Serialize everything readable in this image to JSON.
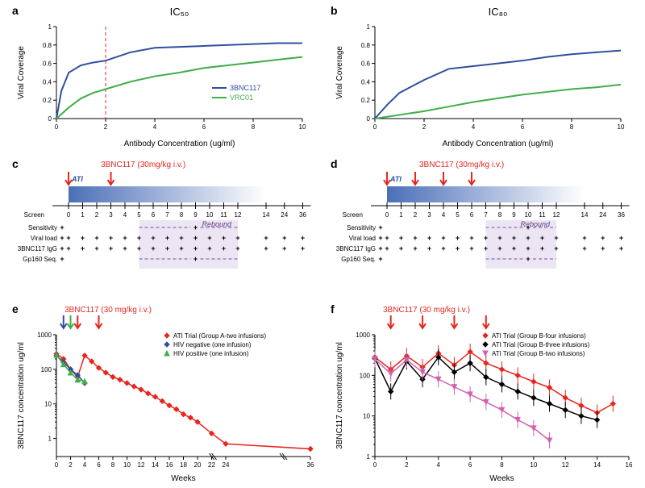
{
  "panel_a": {
    "label": "a",
    "title": "IC₅₀",
    "title_fontsize": 13,
    "type": "line",
    "xlabel": "Antibody Concentration (ug/ml)",
    "ylabel": "Viral Coverage",
    "xlim": [
      0,
      10
    ],
    "ylim": [
      0,
      1.0
    ],
    "xtick_step": 2,
    "ytick_step": 0.2,
    "label_fontsize": 10,
    "tick_fontsize": 8,
    "background": "#ffffff",
    "axis_color": "#000000",
    "vref": {
      "x": 2,
      "color": "#e6261f",
      "dash": "4,3",
      "width": 1
    },
    "series": [
      {
        "name": "3BNC117",
        "color": "#2f4f9f",
        "width": 2,
        "x": [
          0,
          0.2,
          0.5,
          1,
          1.5,
          2,
          3,
          4,
          5,
          6,
          7,
          8,
          9,
          10
        ],
        "y": [
          0,
          0.3,
          0.5,
          0.58,
          0.61,
          0.63,
          0.72,
          0.77,
          0.78,
          0.79,
          0.8,
          0.81,
          0.82,
          0.82
        ]
      },
      {
        "name": "VRC01",
        "color": "#3fae49",
        "width": 2,
        "x": [
          0,
          0.5,
          1,
          1.5,
          2,
          3,
          4,
          5,
          6,
          7,
          8,
          9,
          10
        ],
        "y": [
          0,
          0.12,
          0.22,
          0.28,
          0.32,
          0.4,
          0.46,
          0.5,
          0.55,
          0.58,
          0.61,
          0.64,
          0.67
        ]
      }
    ],
    "legend": {
      "pos": "inside-br",
      "fontsize": 9
    }
  },
  "panel_b": {
    "label": "b",
    "title": "IC₈₀",
    "title_fontsize": 13,
    "type": "line",
    "xlabel": "Antibody Concentration (ug/ml)",
    "ylabel": "Viral Coverage",
    "xlim": [
      0,
      10
    ],
    "ylim": [
      0,
      1.0
    ],
    "xtick_step": 2,
    "ytick_step": 0.2,
    "label_fontsize": 10,
    "tick_fontsize": 8,
    "background": "#ffffff",
    "axis_color": "#000000",
    "series": [
      {
        "name": "3BNC117",
        "color": "#2f4f9f",
        "width": 2,
        "x": [
          0,
          0.5,
          1,
          2,
          3,
          4,
          5,
          6,
          7,
          8,
          9,
          10
        ],
        "y": [
          0,
          0.15,
          0.28,
          0.42,
          0.54,
          0.57,
          0.6,
          0.63,
          0.67,
          0.7,
          0.72,
          0.74
        ]
      },
      {
        "name": "VRC01",
        "color": "#3fae49",
        "width": 2,
        "x": [
          0,
          1,
          2,
          3,
          4,
          5,
          6,
          7,
          8,
          9,
          10
        ],
        "y": [
          0,
          0.04,
          0.08,
          0.13,
          0.18,
          0.22,
          0.26,
          0.29,
          0.32,
          0.34,
          0.37
        ]
      }
    ]
  },
  "panel_c": {
    "label": "c",
    "type": "timeline",
    "heading": "3BNC117 (30mg/kg i.v.)",
    "heading_color": "#e6261f",
    "heading_fontsize": 10,
    "ati_label": "ATI",
    "ati_color": "#2f4f9f",
    "arrows": {
      "color": "#e6261f",
      "positions": [
        0,
        3
      ]
    },
    "axis": {
      "label": "Screen",
      "ticks": [
        0,
        1,
        2,
        3,
        4,
        5,
        6,
        7,
        8,
        9,
        10,
        11,
        12,
        14,
        24,
        36
      ],
      "fontsize": 8
    },
    "gradient": {
      "from": "#4b6fb8",
      "to": "#ffffff",
      "span": [
        0,
        14
      ]
    },
    "rebound_band": {
      "span": [
        5,
        12
      ],
      "color": "#d9cce8",
      "label": "Rebound",
      "label_color": "#5d3b86"
    },
    "rows": [
      {
        "label": "Sensitivity",
        "marks": {
          "-1": "+",
          "9": "+"
        },
        "dash_span": [
          5,
          9,
          9,
          12
        ],
        "dash_color": "#7b4fa0"
      },
      {
        "label": "Viral load",
        "marks_all": "+",
        "extra_marks": {
          "-1": "+"
        }
      },
      {
        "label": "3BNC117 IgG",
        "marks_all": "+",
        "extra_marks": {
          "-1": "+"
        }
      },
      {
        "label": "Gp160 Seq.",
        "marks": {
          "-1": "+",
          "9": "+"
        },
        "dash_span": [
          5,
          9,
          9,
          12
        ],
        "dash_color": "#7b4fa0"
      }
    ]
  },
  "panel_d": {
    "label": "d",
    "type": "timeline",
    "heading": "3BNC117 (30mg/kg i.v.)",
    "heading_color": "#e6261f",
    "heading_fontsize": 10,
    "ati_label": "ATI",
    "ati_color": "#2f4f9f",
    "arrows": {
      "color": "#e6261f",
      "positions": [
        0,
        2,
        4,
        6
      ]
    },
    "axis": {
      "label": "Screen",
      "ticks": [
        0,
        1,
        2,
        3,
        4,
        5,
        6,
        7,
        8,
        9,
        10,
        11,
        12,
        14,
        24,
        36
      ],
      "fontsize": 8
    },
    "gradient": {
      "from": "#4b6fb8",
      "to": "#ffffff",
      "span": [
        0,
        14
      ]
    },
    "rebound_band": {
      "span": [
        7,
        12
      ],
      "color": "#d9cce8",
      "label": "Rebound",
      "label_color": "#5d3b86"
    },
    "rows": [
      {
        "label": "Sensitivity",
        "marks": {
          "-1": "+",
          "10": "+"
        },
        "dash_span": [
          7,
          10,
          10,
          12
        ],
        "dash_color": "#7b4fa0"
      },
      {
        "label": "Viral load",
        "marks_all": "+",
        "extra_marks": {
          "-1": "+"
        }
      },
      {
        "label": "3BNC117 IgG",
        "marks_all": "+",
        "extra_marks": {
          "-1": "+"
        }
      },
      {
        "label": "Gp160 Seq.",
        "marks": {
          "-1": "+",
          "10": "+"
        },
        "dash_span": [
          7,
          10,
          10,
          12
        ],
        "dash_color": "#7b4fa0"
      }
    ]
  },
  "panel_e": {
    "label": "e",
    "type": "line",
    "ylog": true,
    "heading": "3BNC117 (30 mg/kg i.v.)",
    "heading_color": "#e6261f",
    "arrows": [
      {
        "x": 1,
        "color": "#2f4f9f"
      },
      {
        "x": 2,
        "color": "#3fae49"
      },
      {
        "x": 3,
        "color": "#e6261f"
      },
      {
        "x": 6,
        "color": "#e6261f"
      }
    ],
    "xlabel": "Weeks",
    "ylabel": "3BNC117 concentration ug/ml",
    "label_fontsize": 10,
    "tick_fontsize": 8,
    "xlim": [
      0,
      36
    ],
    "xbreaks": [
      22,
      32
    ],
    "xticks": [
      0,
      2,
      4,
      6,
      8,
      10,
      12,
      14,
      16,
      18,
      20,
      22,
      24,
      36
    ],
    "ylim": [
      0.3,
      1000
    ],
    "yticks": [
      1,
      10,
      100,
      1000
    ],
    "series": [
      {
        "name": "ATI Trial (Group A-two infusions)",
        "color": "#e6261f",
        "marker": "diamond",
        "x": [
          0,
          1,
          2,
          3,
          4,
          5,
          6,
          7,
          8,
          9,
          10,
          11,
          12,
          13,
          14,
          15,
          16,
          17,
          18,
          19,
          20,
          22,
          24,
          36
        ],
        "y": [
          280,
          200,
          100,
          60,
          250,
          170,
          110,
          80,
          60,
          50,
          40,
          32,
          26,
          20,
          16,
          12,
          9,
          7,
          5,
          4,
          3,
          1.4,
          0.7,
          0.5
        ]
      },
      {
        "name": "HIV negative (one infusion)",
        "color": "#2f4f9f",
        "marker": "diamond",
        "x": [
          0,
          1,
          2,
          3,
          4
        ],
        "y": [
          250,
          160,
          100,
          68,
          40
        ]
      },
      {
        "name": "HIV positive (one infusion)",
        "color": "#3fae49",
        "marker": "triangle",
        "x": [
          0,
          1,
          2,
          3,
          4
        ],
        "y": [
          260,
          140,
          80,
          50,
          45
        ]
      }
    ],
    "legend": {
      "pos": "inside-tr",
      "fontsize": 8
    }
  },
  "panel_f": {
    "label": "f",
    "type": "line",
    "ylog": true,
    "heading": "3BNC117 (30 mg/kg i.v.)",
    "heading_color": "#e6261f",
    "arrows": [
      {
        "x": 1,
        "color": "#e6261f"
      },
      {
        "x": 3,
        "color": "#e6261f"
      },
      {
        "x": 5,
        "color": "#e6261f"
      },
      {
        "x": 7,
        "color": "#e6261f"
      }
    ],
    "xlabel": "Weeks",
    "ylabel": "3BNC117 concentration ug/ml",
    "label_fontsize": 10,
    "tick_fontsize": 8,
    "xlim": [
      0,
      16
    ],
    "xticks": [
      0,
      2,
      4,
      6,
      8,
      10,
      12,
      14,
      16
    ],
    "ylim": [
      1,
      1000
    ],
    "yticks": [
      1,
      10,
      100,
      1000
    ],
    "errorbars": true,
    "series": [
      {
        "name": "ATI Trial (Group B-four infusions)",
        "color": "#e6261f",
        "marker": "diamond",
        "x": [
          0,
          1,
          2,
          3,
          4,
          5,
          6,
          7,
          8,
          9,
          10,
          11,
          12,
          13,
          14,
          15
        ],
        "y": [
          280,
          140,
          300,
          160,
          350,
          180,
          380,
          200,
          140,
          100,
          70,
          50,
          28,
          18,
          12,
          20
        ]
      },
      {
        "name": "ATI Trial (Group B-three infusions)",
        "color": "#000000",
        "marker": "diamond",
        "x": [
          0,
          1,
          2,
          3,
          4,
          5,
          6,
          7,
          8,
          9,
          10,
          11,
          12,
          13,
          14
        ],
        "y": [
          260,
          40,
          220,
          80,
          280,
          120,
          200,
          90,
          60,
          40,
          28,
          20,
          14,
          10,
          8
        ]
      },
      {
        "name": "ATI Trial (Group B-two infusions)",
        "color": "#d063b0",
        "marker": "triangle-down",
        "x": [
          0,
          1,
          2,
          3,
          4,
          5,
          6,
          7,
          8,
          9,
          10,
          11
        ],
        "y": [
          250,
          110,
          240,
          120,
          80,
          52,
          34,
          22,
          14,
          8,
          5,
          2.5
        ]
      }
    ],
    "legend": {
      "pos": "inside-tr",
      "fontsize": 8
    }
  }
}
